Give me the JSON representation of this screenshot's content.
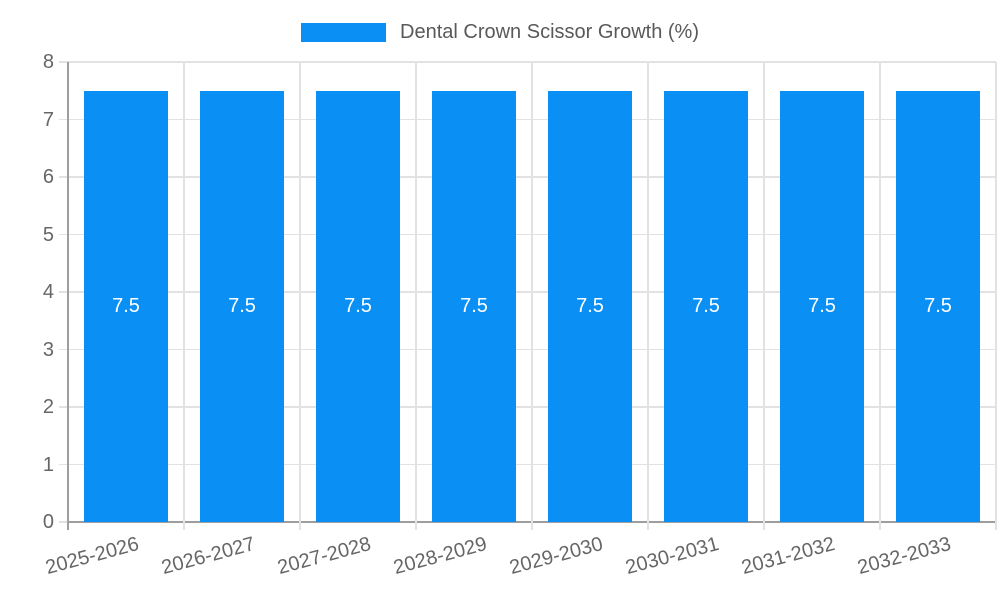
{
  "chart_data": {
    "type": "bar",
    "legend_label": "Dental Crown Scissor Growth (%)",
    "legend_position": "top",
    "categories": [
      "2025-2026",
      "2026-2027",
      "2027-2028",
      "2028-2029",
      "2029-2030",
      "2030-2031",
      "2031-2032",
      "2032-2033"
    ],
    "values": [
      7.5,
      7.5,
      7.5,
      7.5,
      7.5,
      7.5,
      7.5,
      7.5
    ],
    "bar_value_labels": [
      "7.5",
      "7.5",
      "7.5",
      "7.5",
      "7.5",
      "7.5",
      "7.5",
      "7.5"
    ],
    "ylim": [
      0,
      8
    ],
    "yticks": [
      0,
      1,
      2,
      3,
      4,
      5,
      6,
      7,
      8
    ],
    "grid": true,
    "x_tick_rotation_deg": -15,
    "colors": {
      "bar": "#0a8ff4",
      "grid": "#e2e2e2",
      "axis": "#9e9e9e",
      "tick_text": "#666666",
      "legend_text": "#595959",
      "bar_label_text": "#ffffff",
      "background": "#ffffff"
    }
  }
}
